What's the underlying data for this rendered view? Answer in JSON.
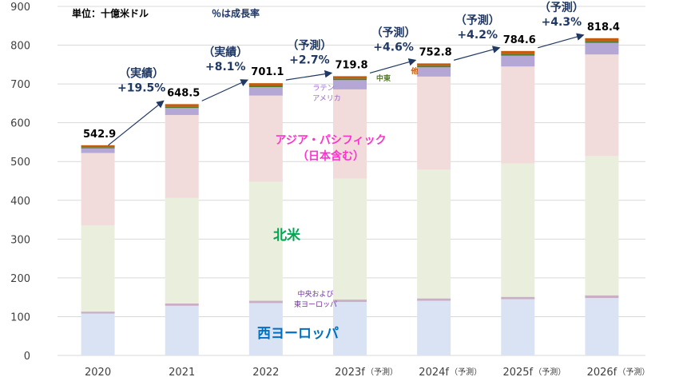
{
  "notes": {
    "unit": "単位：十億米ドル",
    "growth_note": "％は成長率"
  },
  "chart_data": {
    "type": "bar",
    "stacked": true,
    "categories": [
      "2020",
      "2021",
      "2022",
      "2023f",
      "2024f",
      "2025f",
      "2026f"
    ],
    "category_suffix": [
      "",
      "",
      "",
      "（予測）",
      "（予測）",
      "（予測）",
      "（予測）"
    ],
    "ylim": [
      0,
      900
    ],
    "yticks": [
      0,
      100,
      200,
      300,
      400,
      500,
      600,
      700,
      800,
      900
    ],
    "totals": [
      "542.9",
      "648.5",
      "701.1",
      "719.8",
      "752.8",
      "784.6",
      "818.4"
    ],
    "series": [
      {
        "key": "western_europe",
        "name": "西ヨーロッパ",
        "color": "#dae3f3",
        "values": [
          108,
          128,
          135,
          138,
          141,
          145,
          148
        ]
      },
      {
        "key": "central_eastern_europe",
        "name": "中央および東ヨーロッパ",
        "color": "#c9aec6",
        "values": [
          5,
          6,
          6,
          6,
          6,
          6,
          7
        ]
      },
      {
        "key": "north_america",
        "name": "北米",
        "color": "#e9efdc",
        "values": [
          222,
          272,
          307,
          312,
          332,
          344,
          359
        ]
      },
      {
        "key": "asia_pacific",
        "name": "アジア・パシフィック（日本含む）",
        "color": "#f2dcdb",
        "values": [
          187,
          214,
          222,
          230,
          240,
          250,
          262
        ]
      },
      {
        "key": "latin_america",
        "name": "ラテンアメリカ",
        "color": "#b4a7d6",
        "values": [
          12,
          18,
          22,
          24,
          24,
          28,
          30
        ]
      },
      {
        "key": "middle_east",
        "name": "中東",
        "color": "#4e7a2a",
        "values": [
          3,
          4,
          4,
          4,
          4,
          5,
          5
        ]
      },
      {
        "key": "other",
        "name": "他",
        "color": "#c55a11",
        "values": [
          5,
          6,
          6,
          6,
          6,
          7,
          7
        ]
      }
    ],
    "growth_labels": [
      {
        "kind": "（実績）",
        "rate": "+19.5%"
      },
      {
        "kind": "（実績）",
        "rate": "+8.1%"
      },
      {
        "kind": "（予測）",
        "rate": "+2.7%"
      },
      {
        "kind": "（予測）",
        "rate": "+4.6%"
      },
      {
        "kind": "（予測）",
        "rate": "+4.2%"
      },
      {
        "kind": "（予測）",
        "rate": "+4.3%"
      }
    ],
    "series_labels": {
      "western_europe": "西ヨーロッパ",
      "central_eastern_europe_1": "中央および",
      "central_eastern_europe_2": "東ヨーロッパ",
      "north_america": "北米",
      "asia_pacific_1": "アジア・パシフィック",
      "asia_pacific_2": "（日本含む）",
      "latin_america_1": "ラテン",
      "latin_america_2": "アメリカ",
      "middle_east": "中東",
      "other": "他"
    },
    "label_colors": {
      "western_europe": "#0070c0",
      "central_eastern_europe": "#7030a0",
      "north_america": "#00a651",
      "asia_pacific": "#ff33cc",
      "latin_america": "#9966cc",
      "middle_east": "#4e7a2a",
      "other": "#c55a11"
    }
  }
}
